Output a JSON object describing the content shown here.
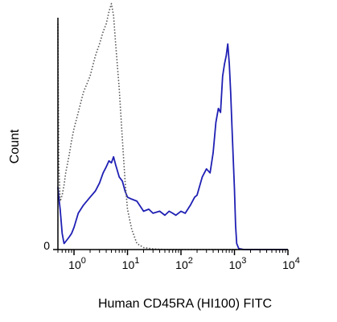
{
  "chart_data": {
    "type": "line",
    "title": "",
    "xlabel": "Human CD45RA (HI100) FITC",
    "ylabel": "Count",
    "x_scale": "log",
    "xlim": [
      0.5,
      10000
    ],
    "ylim": [
      0,
      1.15
    ],
    "x_ticks": [
      {
        "value": 1,
        "base": "10",
        "exp": "0"
      },
      {
        "value": 10,
        "base": "10",
        "exp": "1"
      },
      {
        "value": 100,
        "base": "10",
        "exp": "2"
      },
      {
        "value": 1000,
        "base": "10",
        "exp": "3"
      },
      {
        "value": 10000,
        "base": "10",
        "exp": "4"
      }
    ],
    "y_ticks": [
      {
        "value": 0,
        "label": "0"
      }
    ],
    "grid": false,
    "legend": null,
    "series": [
      {
        "style": "solid",
        "color": "#1f1fb4",
        "x": [
          0.5,
          0.52,
          0.55,
          0.6,
          0.65,
          0.7,
          0.8,
          0.9,
          1.0,
          1.2,
          1.5,
          2.0,
          2.5,
          3.0,
          3.5,
          4.0,
          4.5,
          5.0,
          5.5,
          6.0,
          7.0,
          8.0,
          9.0,
          10.0,
          12.0,
          15.0,
          20.0,
          25.0,
          30.0,
          40.0,
          50.0,
          60.0,
          70.0,
          80.0,
          100.0,
          120.0,
          150.0,
          180.0,
          200.0,
          250.0,
          300.0,
          350.0,
          400.0,
          450.0,
          500.0,
          550.0,
          600.0,
          650.0,
          700.0,
          750.0,
          800.0,
          850.0,
          900.0,
          950.0,
          1000.0,
          1050.0,
          1100.0,
          1200.0,
          1500.0,
          2000.0,
          5000.0,
          10000.0
        ],
        "y": [
          0.31,
          0.26,
          0.2,
          0.08,
          0.03,
          0.04,
          0.06,
          0.08,
          0.11,
          0.18,
          0.22,
          0.26,
          0.29,
          0.33,
          0.38,
          0.41,
          0.44,
          0.43,
          0.46,
          0.42,
          0.36,
          0.34,
          0.29,
          0.26,
          0.25,
          0.24,
          0.19,
          0.2,
          0.18,
          0.19,
          0.17,
          0.19,
          0.18,
          0.17,
          0.19,
          0.18,
          0.22,
          0.26,
          0.27,
          0.36,
          0.4,
          0.38,
          0.48,
          0.63,
          0.7,
          0.68,
          0.86,
          0.92,
          0.96,
          1.02,
          0.92,
          0.78,
          0.6,
          0.45,
          0.3,
          0.12,
          0.03,
          0.005,
          0.0,
          0.0,
          0.0,
          0.0
        ]
      },
      {
        "style": "dotted",
        "color": "#555555",
        "x": [
          0.5,
          0.52,
          0.55,
          0.6,
          0.65,
          0.7,
          0.8,
          0.9,
          1.0,
          1.2,
          1.5,
          2.0,
          2.5,
          3.0,
          3.5,
          4.0,
          4.5,
          5.0,
          5.5,
          6.0,
          7.0,
          8.0,
          9.0,
          10.0,
          12.0,
          15.0,
          20.0,
          30.0,
          50.0,
          100.0,
          1000.0,
          10000.0
        ],
        "y": [
          1.12,
          0.42,
          0.24,
          0.27,
          0.32,
          0.38,
          0.46,
          0.54,
          0.6,
          0.68,
          0.78,
          0.86,
          0.96,
          1.02,
          1.08,
          1.12,
          1.18,
          1.22,
          1.16,
          1.02,
          0.8,
          0.55,
          0.34,
          0.2,
          0.1,
          0.03,
          0.01,
          0.003,
          0.0,
          0.0,
          0.0,
          0.0
        ]
      }
    ]
  }
}
